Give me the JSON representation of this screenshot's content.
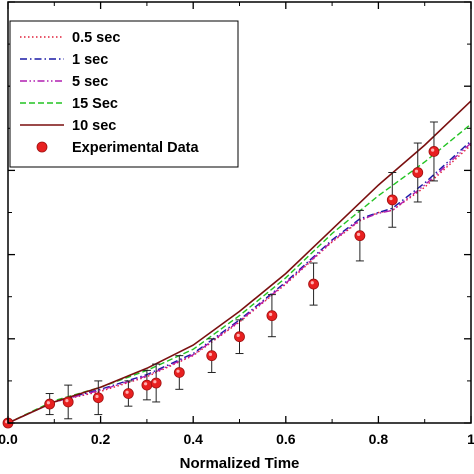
{
  "chart_data": {
    "type": "line",
    "xlabel": "Normalized Time",
    "ylabel": "",
    "xlim": [
      0.0,
      1.0
    ],
    "ylim": [
      0.0,
      1.0
    ],
    "xticks": [
      0.0,
      0.2,
      0.4,
      0.6,
      0.8,
      1.0
    ],
    "xtick_labels": [
      "0.0",
      "0.2",
      "0.4",
      "0.6",
      "0.8",
      "1"
    ],
    "y_tick_values": [
      0.0,
      0.2,
      0.4,
      0.6,
      0.8,
      1.0
    ],
    "grid": false,
    "legend_position": "top-left",
    "series": [
      {
        "name": "0.5 sec",
        "style": "dotted",
        "color": "#e0213a",
        "x": [
          0.0,
          0.1,
          0.2,
          0.3,
          0.4,
          0.5,
          0.6,
          0.7,
          0.76,
          0.8,
          0.83,
          0.9,
          1.0
        ],
        "y": [
          0.0,
          0.05,
          0.075,
          0.11,
          0.16,
          0.24,
          0.33,
          0.43,
          0.48,
          0.5,
          0.505,
          0.56,
          0.66
        ]
      },
      {
        "name": "1 sec",
        "style": "dashdot",
        "color": "#1a1aa6",
        "x": [
          0.0,
          0.1,
          0.2,
          0.3,
          0.4,
          0.5,
          0.6,
          0.7,
          0.76,
          0.8,
          0.83,
          0.9,
          1.0
        ],
        "y": [
          0.0,
          0.05,
          0.08,
          0.115,
          0.165,
          0.245,
          0.335,
          0.435,
          0.485,
          0.5,
          0.51,
          0.57,
          0.67
        ]
      },
      {
        "name": "5 sec",
        "style": "dashdotdot",
        "color": "#b01fb0",
        "x": [
          0.0,
          0.1,
          0.2,
          0.3,
          0.4,
          0.5,
          0.6,
          0.7,
          0.76,
          0.8,
          0.83,
          0.9,
          1.0
        ],
        "y": [
          0.0,
          0.05,
          0.078,
          0.112,
          0.162,
          0.242,
          0.332,
          0.432,
          0.482,
          0.498,
          0.505,
          0.565,
          0.665
        ]
      },
      {
        "name": "15 Sec",
        "style": "dashed",
        "color": "#22c322",
        "x": [
          0.0,
          0.1,
          0.2,
          0.3,
          0.4,
          0.5,
          0.6,
          0.7,
          0.8,
          0.9,
          1.0
        ],
        "y": [
          0.0,
          0.053,
          0.085,
          0.125,
          0.175,
          0.255,
          0.345,
          0.45,
          0.54,
          0.62,
          0.71
        ]
      },
      {
        "name": "10 sec",
        "style": "solid",
        "color": "#7a0f0f",
        "x": [
          0.0,
          0.1,
          0.2,
          0.3,
          0.4,
          0.5,
          0.6,
          0.7,
          0.8,
          0.9,
          1.0
        ],
        "y": [
          0.0,
          0.05,
          0.085,
          0.13,
          0.185,
          0.265,
          0.355,
          0.46,
          0.565,
          0.66,
          0.765
        ]
      }
    ],
    "experimental_data": {
      "name": "Experimental Data",
      "color": "#e82020",
      "points": [
        {
          "x": 0.0,
          "y": 0.0,
          "err": 0.0
        },
        {
          "x": 0.09,
          "y": 0.045,
          "err": 0.025
        },
        {
          "x": 0.13,
          "y": 0.05,
          "err": 0.04
        },
        {
          "x": 0.195,
          "y": 0.06,
          "err": 0.04
        },
        {
          "x": 0.26,
          "y": 0.07,
          "err": 0.03
        },
        {
          "x": 0.3,
          "y": 0.09,
          "err": 0.035
        },
        {
          "x": 0.32,
          "y": 0.095,
          "err": 0.045
        },
        {
          "x": 0.37,
          "y": 0.12,
          "err": 0.04
        },
        {
          "x": 0.44,
          "y": 0.16,
          "err": 0.04
        },
        {
          "x": 0.5,
          "y": 0.205,
          "err": 0.04
        },
        {
          "x": 0.57,
          "y": 0.255,
          "err": 0.05
        },
        {
          "x": 0.66,
          "y": 0.33,
          "err": 0.05
        },
        {
          "x": 0.76,
          "y": 0.445,
          "err": 0.06
        },
        {
          "x": 0.83,
          "y": 0.53,
          "err": 0.065
        },
        {
          "x": 0.885,
          "y": 0.595,
          "err": 0.07
        },
        {
          "x": 0.92,
          "y": 0.645,
          "err": 0.07
        }
      ]
    },
    "legend": {
      "entries": [
        "0.5 sec",
        "1 sec",
        "5 sec",
        "15 Sec",
        "10 sec",
        "Experimental Data"
      ]
    }
  }
}
